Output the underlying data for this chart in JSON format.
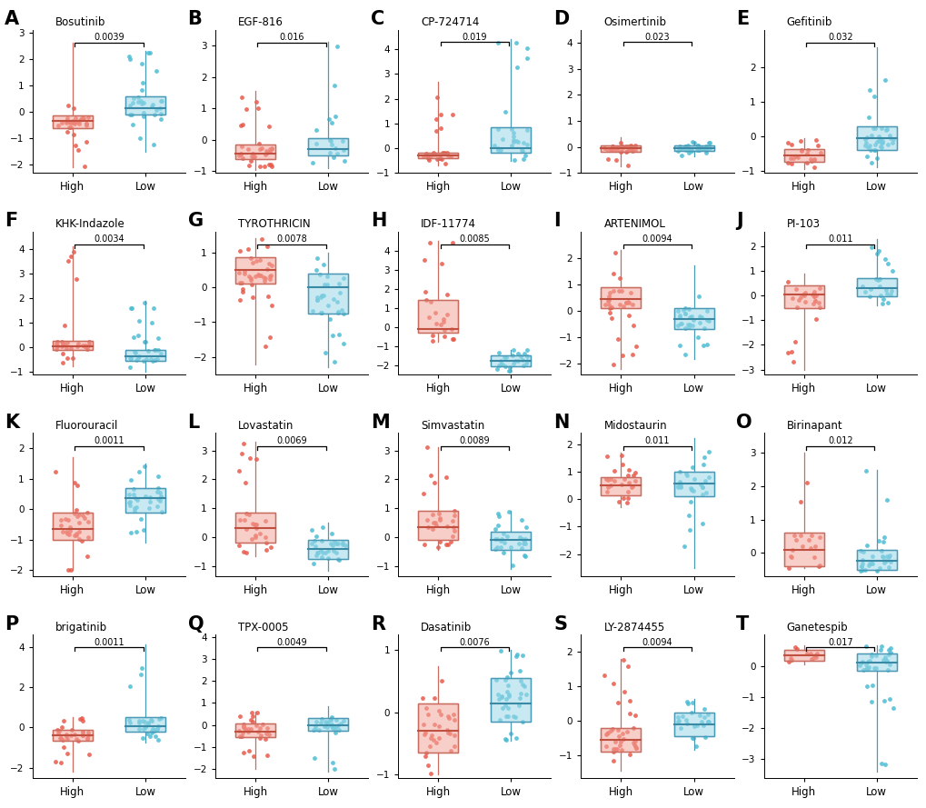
{
  "panels": [
    {
      "label": "A",
      "title": "Bosutinib",
      "pval": "0.0039",
      "high_median": -0.35,
      "high_q1": -0.6,
      "high_q3": -0.15,
      "high_whislo": -2.1,
      "high_whishi": 2.6,
      "low_median": 0.15,
      "low_q1": -0.1,
      "low_q3": 0.6,
      "low_whislo": -1.5,
      "low_whishi": 2.3,
      "high_n": 32,
      "low_n": 32,
      "ylim": [
        -2.3,
        3.1
      ],
      "yticks": [
        -2,
        -1,
        0,
        1,
        2,
        3
      ]
    },
    {
      "label": "B",
      "title": "EGF-816",
      "pval": "0.016",
      "high_median": -0.45,
      "high_q1": -0.62,
      "high_q3": -0.15,
      "high_whislo": -0.95,
      "high_whishi": 1.55,
      "low_median": -0.3,
      "low_q1": -0.5,
      "low_q3": 0.05,
      "low_whislo": -0.9,
      "low_whishi": 3.1,
      "high_n": 35,
      "low_n": 18,
      "ylim": [
        -1.05,
        3.5
      ],
      "yticks": [
        -1,
        0,
        1,
        2,
        3
      ]
    },
    {
      "label": "C",
      "title": "CP-724714",
      "pval": "0.019",
      "high_median": -0.3,
      "high_q1": -0.42,
      "high_q3": -0.18,
      "high_whislo": -0.7,
      "high_whishi": 2.7,
      "low_median": 0.0,
      "low_q1": -0.2,
      "low_q3": 0.85,
      "low_whislo": -0.5,
      "low_whishi": 4.4,
      "high_n": 30,
      "low_n": 28,
      "ylim": [
        -0.85,
        4.8
      ],
      "yticks": [
        -1,
        0,
        1,
        2,
        3,
        4
      ]
    },
    {
      "label": "D",
      "title": "Osimertinib",
      "pval": "0.023",
      "high_median": -0.05,
      "high_q1": -0.2,
      "high_q3": 0.05,
      "high_whislo": -0.75,
      "high_whishi": 0.35,
      "low_median": -0.05,
      "low_q1": -0.15,
      "low_q3": 0.05,
      "low_whislo": -0.35,
      "low_whishi": 0.2,
      "high_n": 35,
      "low_n": 35,
      "ylim": [
        -0.85,
        4.5
      ],
      "yticks": [
        -1,
        0,
        1,
        2,
        3,
        4
      ]
    },
    {
      "label": "E",
      "title": "Gefitinib",
      "pval": "0.032",
      "high_median": -0.55,
      "high_q1": -0.72,
      "high_q3": -0.35,
      "high_whislo": -0.95,
      "high_whishi": -0.05,
      "low_median": -0.05,
      "low_q1": -0.4,
      "low_q3": 0.3,
      "low_whislo": -0.9,
      "low_whishi": 2.6,
      "high_n": 22,
      "low_n": 38,
      "ylim": [
        -1.05,
        3.1
      ],
      "yticks": [
        -1,
        0,
        1,
        2
      ]
    },
    {
      "label": "F",
      "title": "KHK-Indazole",
      "pval": "0.0034",
      "high_median": 0.05,
      "high_q1": -0.1,
      "high_q3": 0.25,
      "high_whislo": -0.75,
      "high_whishi": 4.1,
      "low_median": -0.35,
      "low_q1": -0.55,
      "low_q3": -0.1,
      "low_whislo": -1.0,
      "low_whishi": 1.9,
      "high_n": 32,
      "low_n": 32,
      "ylim": [
        -1.1,
        4.7
      ],
      "yticks": [
        -1,
        0,
        1,
        2,
        3,
        4
      ]
    },
    {
      "label": "G",
      "title": "TYROTHRICIN",
      "pval": "0.0078",
      "high_median": 0.5,
      "high_q1": 0.1,
      "high_q3": 0.85,
      "high_whislo": -2.2,
      "high_whishi": 1.4,
      "low_median": 0.0,
      "low_q1": -0.75,
      "low_q3": 0.4,
      "low_whislo": -2.3,
      "low_whishi": 1.0,
      "high_n": 38,
      "low_n": 32,
      "ylim": [
        -2.5,
        1.6
      ],
      "yticks": [
        -2,
        -1,
        0,
        1
      ]
    },
    {
      "label": "H",
      "title": "IDF-11774",
      "pval": "0.0085",
      "high_median": -0.1,
      "high_q1": -0.3,
      "high_q3": 1.4,
      "high_whislo": -0.8,
      "high_whishi": 4.5,
      "low_median": -1.8,
      "low_q1": -2.05,
      "low_q3": -1.5,
      "low_whislo": -2.3,
      "low_whishi": -1.2,
      "high_n": 22,
      "low_n": 26,
      "ylim": [
        -2.5,
        5.0
      ],
      "yticks": [
        -2,
        -1,
        0,
        1,
        2,
        3,
        4
      ]
    },
    {
      "label": "I",
      "title": "ARTENIMOL",
      "pval": "0.0094",
      "high_median": 0.45,
      "high_q1": 0.1,
      "high_q3": 0.9,
      "high_whislo": -2.2,
      "high_whishi": 2.3,
      "low_median": -0.3,
      "low_q1": -0.7,
      "low_q3": 0.1,
      "low_whislo": -1.8,
      "low_whishi": 1.7,
      "high_n": 32,
      "low_n": 32,
      "ylim": [
        -2.4,
        3.0
      ],
      "yticks": [
        -2,
        -1,
        0,
        1,
        2
      ]
    },
    {
      "label": "J",
      "title": "PI-103",
      "pval": "0.011",
      "high_median": 0.05,
      "high_q1": -0.5,
      "high_q3": 0.4,
      "high_whislo": -3.0,
      "high_whishi": 0.9,
      "low_median": 0.3,
      "low_q1": -0.05,
      "low_q3": 0.7,
      "low_whislo": -0.4,
      "low_whishi": 2.3,
      "high_n": 26,
      "low_n": 22,
      "ylim": [
        -3.2,
        2.6
      ],
      "yticks": [
        -3,
        -2,
        -1,
        0,
        1,
        2
      ]
    },
    {
      "label": "K",
      "title": "Fluorouracil",
      "pval": "0.0011",
      "high_median": -0.65,
      "high_q1": -1.0,
      "high_q3": -0.1,
      "high_whislo": -2.0,
      "high_whishi": 1.7,
      "low_median": 0.35,
      "low_q1": -0.1,
      "low_q3": 0.7,
      "low_whislo": -1.1,
      "low_whishi": 1.5,
      "high_n": 32,
      "low_n": 32,
      "ylim": [
        -2.2,
        2.5
      ],
      "yticks": [
        -2,
        -1,
        0,
        1,
        2
      ]
    },
    {
      "label": "L",
      "title": "Lovastatin",
      "pval": "0.0069",
      "high_median": 0.3,
      "high_q1": -0.2,
      "high_q3": 0.85,
      "high_whislo": -0.65,
      "high_whishi": 3.3,
      "low_median": -0.4,
      "low_q1": -0.75,
      "low_q3": -0.1,
      "low_whislo": -1.15,
      "low_whishi": 0.5,
      "high_n": 28,
      "low_n": 30,
      "ylim": [
        -1.35,
        3.6
      ],
      "yticks": [
        -1,
        0,
        1,
        2,
        3
      ]
    },
    {
      "label": "M",
      "title": "Simvastatin",
      "pval": "0.0089",
      "high_median": 0.35,
      "high_q1": -0.1,
      "high_q3": 0.9,
      "high_whislo": -0.45,
      "high_whishi": 3.1,
      "low_median": -0.1,
      "low_q1": -0.45,
      "low_q3": 0.2,
      "low_whislo": -1.1,
      "low_whishi": 0.9,
      "high_n": 28,
      "low_n": 30,
      "ylim": [
        -1.35,
        3.6
      ],
      "yticks": [
        -1,
        0,
        1,
        2,
        3
      ]
    },
    {
      "label": "N",
      "title": "Midostaurin",
      "pval": "0.011",
      "high_median": 0.5,
      "high_q1": 0.15,
      "high_q3": 0.8,
      "high_whislo": -0.3,
      "high_whishi": 1.7,
      "low_median": 0.55,
      "low_q1": 0.1,
      "low_q3": 1.0,
      "low_whislo": -2.5,
      "low_whishi": 2.2,
      "high_n": 26,
      "low_n": 30,
      "ylim": [
        -2.8,
        2.4
      ],
      "yticks": [
        -2,
        -1,
        0,
        1,
        2
      ]
    },
    {
      "label": "O",
      "title": "Birinapant",
      "pval": "0.012",
      "high_median": 0.1,
      "high_q1": -0.4,
      "high_q3": 0.6,
      "high_whislo": -0.45,
      "high_whishi": 3.0,
      "low_median": -0.25,
      "low_q1": -0.5,
      "low_q3": 0.1,
      "low_whislo": -0.55,
      "low_whishi": 2.5,
      "high_n": 18,
      "low_n": 32,
      "ylim": [
        -0.7,
        3.6
      ],
      "yticks": [
        0,
        1,
        2,
        3
      ]
    },
    {
      "label": "P",
      "title": "brigatinib",
      "pval": "0.0011",
      "high_median": -0.4,
      "high_q1": -0.65,
      "high_q3": -0.1,
      "high_whislo": -2.2,
      "high_whishi": 0.5,
      "low_median": 0.05,
      "low_q1": -0.2,
      "low_q3": 0.5,
      "low_whislo": -0.75,
      "low_whishi": 4.1,
      "high_n": 32,
      "low_n": 32,
      "ylim": [
        -2.5,
        4.6
      ],
      "yticks": [
        -2,
        0,
        2,
        4
      ]
    },
    {
      "label": "Q",
      "title": "TPX-0005",
      "pval": "0.0049",
      "high_median": -0.3,
      "high_q1": -0.55,
      "high_q3": 0.05,
      "high_whislo": -2.0,
      "high_whishi": 0.6,
      "low_median": 0.0,
      "low_q1": -0.25,
      "low_q3": 0.3,
      "low_whislo": -2.1,
      "low_whishi": 0.85,
      "high_n": 32,
      "low_n": 32,
      "ylim": [
        -2.4,
        4.1
      ],
      "yticks": [
        -2,
        -1,
        0,
        1,
        2,
        3,
        4
      ]
    },
    {
      "label": "R",
      "title": "Dasatinib",
      "pval": "0.0076",
      "high_median": -0.3,
      "high_q1": -0.65,
      "high_q3": 0.15,
      "high_whislo": -1.0,
      "high_whishi": 0.75,
      "low_median": 0.15,
      "low_q1": -0.15,
      "low_q3": 0.55,
      "low_whislo": -0.45,
      "low_whishi": 1.0,
      "high_n": 32,
      "low_n": 38,
      "ylim": [
        -1.05,
        1.25
      ],
      "yticks": [
        -1,
        0,
        1
      ]
    },
    {
      "label": "S",
      "title": "LY-2874455",
      "pval": "0.0094",
      "high_median": -0.55,
      "high_q1": -0.9,
      "high_q3": -0.2,
      "high_whislo": -1.45,
      "high_whishi": 1.8,
      "low_median": -0.1,
      "low_q1": -0.45,
      "low_q3": 0.25,
      "low_whislo": -0.85,
      "low_whishi": 0.65,
      "high_n": 38,
      "low_n": 26,
      "ylim": [
        -1.65,
        2.5
      ],
      "yticks": [
        -1,
        0,
        1,
        2
      ]
    },
    {
      "label": "T",
      "title": "Ganetespib",
      "pval": "0.017",
      "high_median": 0.35,
      "high_q1": 0.15,
      "high_q3": 0.5,
      "high_whislo": 0.05,
      "high_whishi": 0.65,
      "low_median": 0.1,
      "low_q1": -0.15,
      "low_q3": 0.4,
      "low_whislo": -3.4,
      "low_whishi": 0.65,
      "high_n": 12,
      "low_n": 38,
      "ylim": [
        -3.6,
        1.0
      ],
      "yticks": [
        -3,
        -2,
        -1,
        0
      ]
    }
  ],
  "red_face": "#F4A79D",
  "red_edge": "#C96B5E",
  "red_median": "#C05040",
  "red_dot": "#E8594A",
  "blue_face": "#9ED8E8",
  "blue_edge": "#4A9AB5",
  "blue_median": "#3A8AA5",
  "blue_dot": "#4BBCD4",
  "dot_size": 12,
  "dot_alpha": 0.85,
  "box_width": 0.55
}
